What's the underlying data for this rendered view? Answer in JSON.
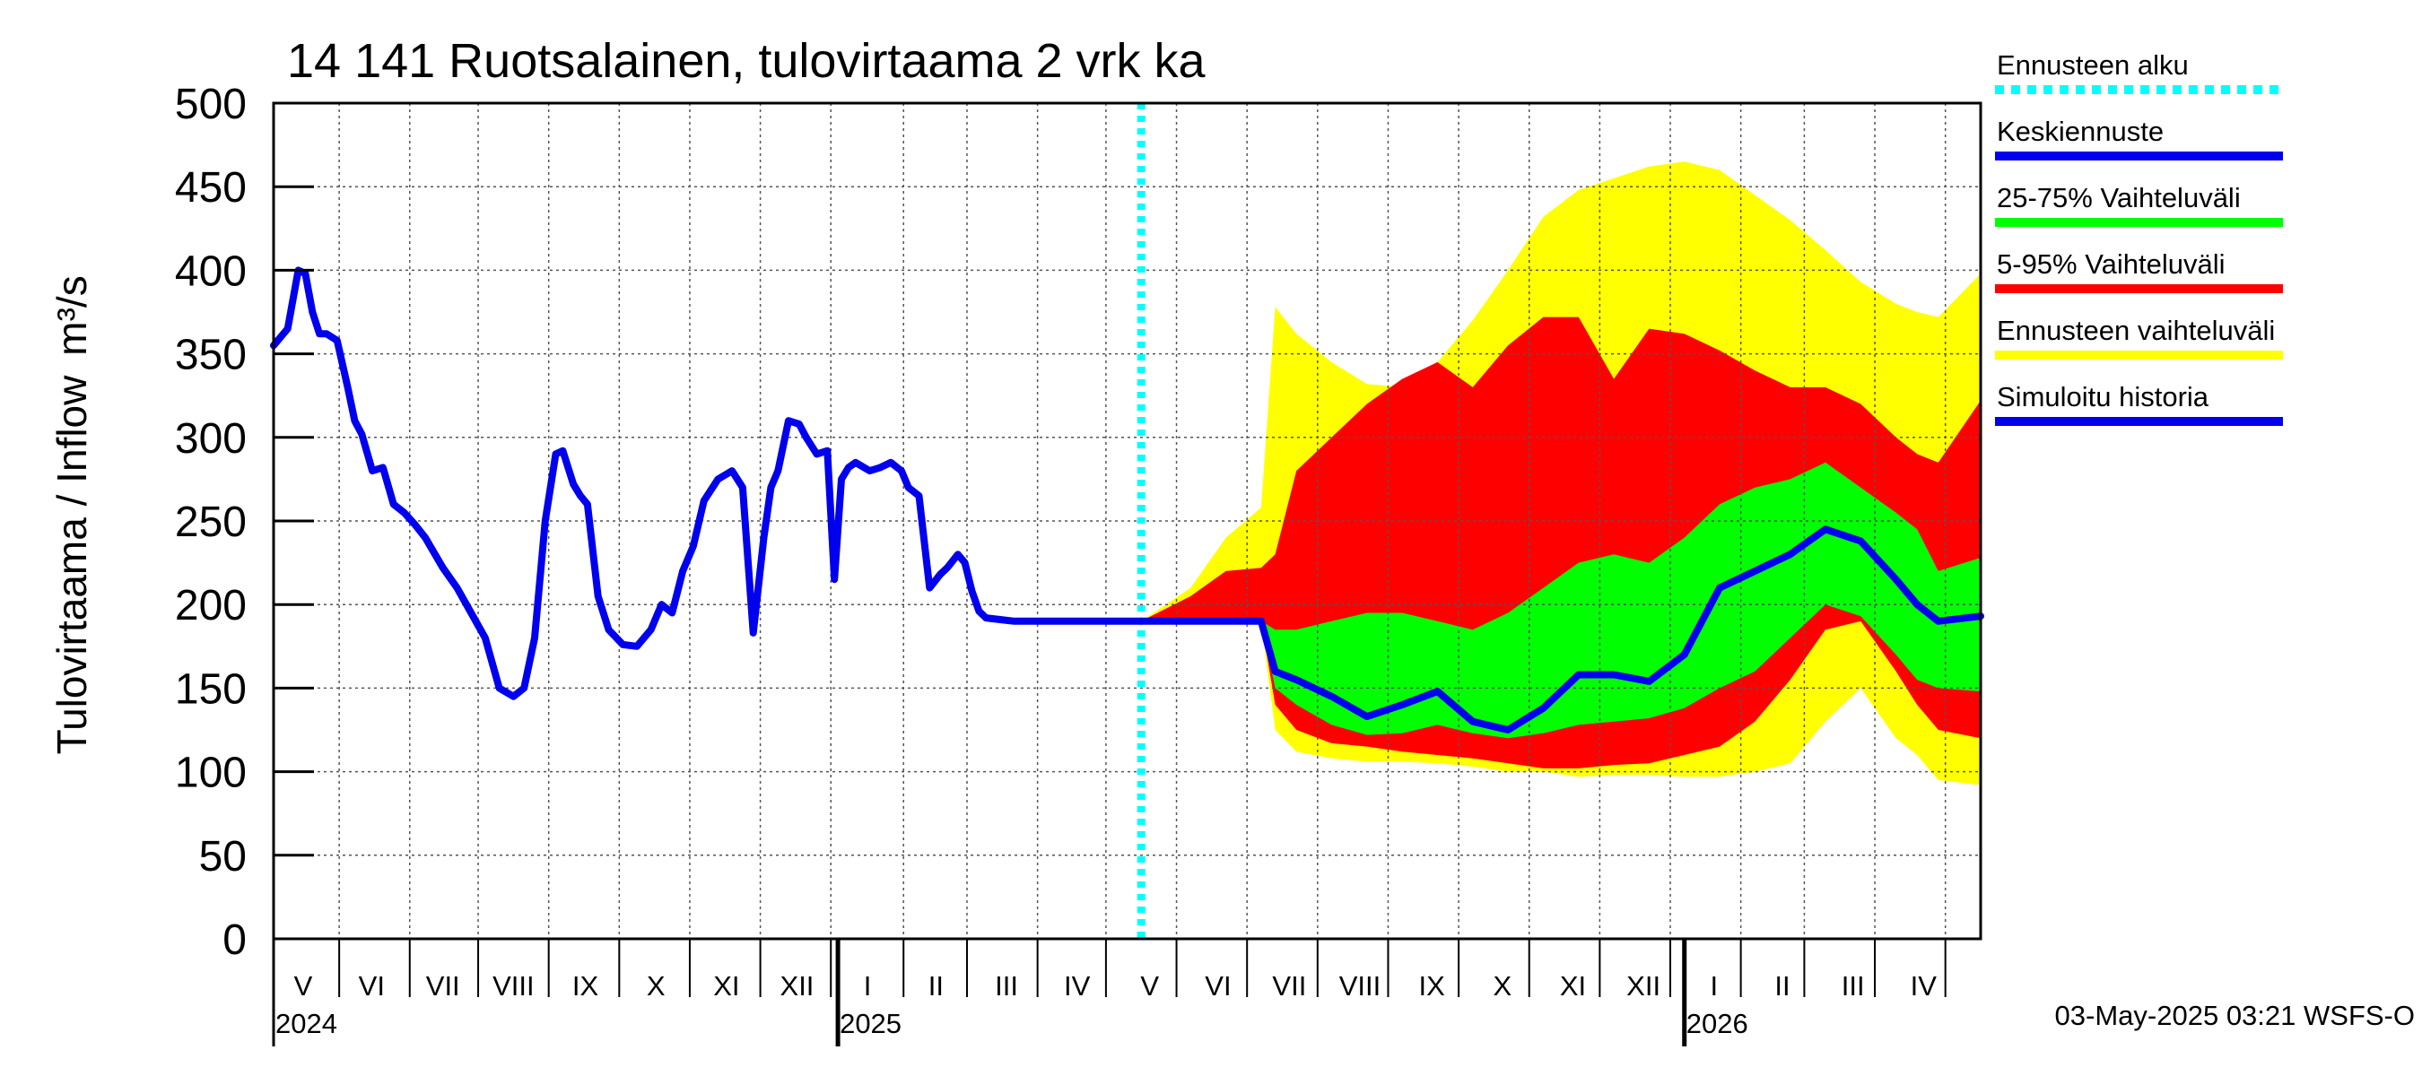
{
  "chart_data": {
    "type": "area",
    "title": "14 141 Ruotsalainen, tulovirtaama 2 vrk ka",
    "ylabel": "Tulovirtaama / Inflow",
    "yunit": "m³/s",
    "ylim": [
      0,
      500
    ],
    "yticks": [
      0,
      50,
      100,
      150,
      200,
      250,
      300,
      350,
      400,
      450,
      500
    ],
    "x_unit": "months since 2024-04-22",
    "xlim": [
      0,
      24.2
    ],
    "grid": true,
    "forecast_start": 12.3,
    "month_labels": [
      {
        "label": "V",
        "x": 0.42
      },
      {
        "label": "VI",
        "x": 1.39
      },
      {
        "label": "VII",
        "x": 2.4
      },
      {
        "label": "VIII",
        "x": 3.4
      },
      {
        "label": "IX",
        "x": 4.42
      },
      {
        "label": "X",
        "x": 5.42
      },
      {
        "label": "XI",
        "x": 6.42
      },
      {
        "label": "XII",
        "x": 7.42
      },
      {
        "label": "I",
        "x": 8.42
      },
      {
        "label": "II",
        "x": 9.39
      },
      {
        "label": "III",
        "x": 10.39
      },
      {
        "label": "IV",
        "x": 11.39
      },
      {
        "label": "V",
        "x": 12.42
      },
      {
        "label": "VI",
        "x": 13.39
      },
      {
        "label": "VII",
        "x": 14.4
      },
      {
        "label": "VIII",
        "x": 15.4
      },
      {
        "label": "IX",
        "x": 16.42
      },
      {
        "label": "X",
        "x": 17.42
      },
      {
        "label": "XI",
        "x": 18.42
      },
      {
        "label": "XII",
        "x": 19.42
      },
      {
        "label": "I",
        "x": 20.42
      },
      {
        "label": "II",
        "x": 21.39
      },
      {
        "label": "III",
        "x": 22.39
      },
      {
        "label": "IV",
        "x": 23.39
      }
    ],
    "month_boundaries": [
      0.93,
      1.93,
      2.9,
      3.9,
      4.9,
      5.9,
      6.9,
      7.9,
      8.93,
      9.83,
      10.83,
      11.8,
      12.8,
      13.8,
      14.8,
      15.8,
      16.8,
      17.8,
      18.8,
      19.8,
      20.8,
      21.7,
      22.7,
      23.7
    ],
    "year_boundaries": [
      8.0,
      20.0
    ],
    "year_labels": [
      {
        "label": "2024",
        "x": 0.0
      },
      {
        "label": "2025",
        "x": 8.0
      },
      {
        "label": "2026",
        "x": 20.0
      }
    ],
    "history": {
      "name": "Simuloitu historia",
      "x": [
        0.0,
        0.2,
        0.35,
        0.45,
        0.55,
        0.65,
        0.75,
        0.9,
        1.05,
        1.15,
        1.25,
        1.4,
        1.55,
        1.7,
        1.85,
        2.0,
        2.15,
        2.4,
        2.6,
        2.8,
        3.0,
        3.2,
        3.4,
        3.55,
        3.7,
        3.85,
        4.0,
        4.1,
        4.25,
        4.35,
        4.45,
        4.6,
        4.75,
        4.95,
        5.15,
        5.35,
        5.5,
        5.65,
        5.8,
        5.95,
        6.1,
        6.3,
        6.5,
        6.65,
        6.8,
        6.95,
        7.05,
        7.15,
        7.3,
        7.45,
        7.55,
        7.7,
        7.85,
        7.95,
        8.05,
        8.15,
        8.25,
        8.45,
        8.6,
        8.75,
        8.9,
        9.0,
        9.15,
        9.3,
        9.45,
        9.55,
        9.7,
        9.8,
        9.9,
        10.0,
        10.1,
        10.3,
        10.5,
        10.7,
        10.9,
        11.05,
        11.15,
        11.3,
        11.45,
        11.55,
        11.7,
        11.8,
        11.9,
        12.0,
        12.15,
        12.3
      ],
      "y": [
        355,
        365,
        400,
        398,
        375,
        362,
        362,
        358,
        330,
        310,
        302,
        280,
        282,
        260,
        255,
        248,
        240,
        222,
        210,
        195,
        180,
        150,
        145,
        150,
        180,
        250,
        290,
        292,
        272,
        265,
        260,
        205,
        185,
        176,
        175,
        185,
        200,
        195,
        220,
        235,
        262,
        275,
        280,
        270,
        183,
        240,
        270,
        280,
        310,
        308,
        300,
        290,
        292,
        215,
        275,
        282,
        285,
        280,
        282,
        285,
        280,
        270,
        265,
        210,
        218,
        222,
        230,
        225,
        208,
        196,
        192,
        191,
        190,
        190,
        190,
        190,
        190,
        190,
        190,
        190,
        190,
        190,
        190,
        190,
        190,
        190
      ]
    },
    "forecast": {
      "x": [
        12.3,
        13.0,
        13.5,
        14.0,
        14.2,
        14.5,
        15.0,
        15.5,
        16.0,
        16.5,
        17.0,
        17.5,
        18.0,
        18.5,
        19.0,
        19.5,
        20.0,
        20.5,
        21.0,
        21.5,
        22.0,
        22.5,
        23.0,
        23.3,
        23.6,
        24.2
      ],
      "median": [
        190,
        190,
        190,
        190,
        160,
        155,
        145,
        133,
        140,
        148,
        130,
        125,
        138,
        158,
        158,
        154,
        170,
        210,
        220,
        230,
        245,
        238,
        215,
        200,
        190,
        193
      ],
      "p25": [
        190,
        190,
        190,
        190,
        150,
        140,
        128,
        122,
        123,
        128,
        123,
        120,
        123,
        128,
        130,
        132,
        138,
        150,
        160,
        180,
        200,
        193,
        170,
        155,
        150,
        148
      ],
      "p75": [
        190,
        190,
        190,
        190,
        185,
        185,
        190,
        195,
        195,
        190,
        185,
        195,
        210,
        225,
        230,
        225,
        240,
        260,
        270,
        275,
        285,
        270,
        255,
        245,
        220,
        228
      ],
      "p5": [
        190,
        190,
        190,
        190,
        140,
        125,
        117,
        115,
        112,
        110,
        108,
        105,
        102,
        102,
        104,
        105,
        110,
        115,
        130,
        155,
        185,
        190,
        160,
        140,
        125,
        120
      ],
      "p95": [
        190,
        205,
        220,
        222,
        230,
        280,
        300,
        320,
        335,
        345,
        330,
        355,
        372,
        372,
        335,
        365,
        362,
        352,
        340,
        330,
        330,
        320,
        300,
        290,
        285,
        322
      ],
      "min": [
        190,
        190,
        190,
        190,
        125,
        112,
        108,
        106,
        106,
        105,
        103,
        100,
        100,
        97,
        98,
        98,
        97,
        97,
        100,
        105,
        130,
        150,
        120,
        110,
        95,
        92
      ],
      "max": [
        190,
        210,
        240,
        258,
        378,
        362,
        345,
        332,
        330,
        345,
        370,
        400,
        432,
        448,
        455,
        462,
        465,
        460,
        445,
        430,
        412,
        393,
        380,
        375,
        372,
        398
      ]
    },
    "colors": {
      "median": "#0000ee",
      "history": "#0000ee",
      "p25_75": "#00ff00",
      "p5_95": "#ff0000",
      "range": "#ffff00",
      "forecast_start": "#00ffff",
      "grid": "#555555",
      "axis": "#000000"
    },
    "legend": [
      {
        "label": "Ennusteen alku",
        "color": "#00ffff",
        "style": "dotted"
      },
      {
        "label": "Keskiennuste",
        "color": "#0000ee",
        "style": "solid"
      },
      {
        "label": "25-75% Vaihteluväli",
        "color": "#00ff00",
        "style": "solid"
      },
      {
        "label": "5-95% Vaihteluväli",
        "color": "#ff0000",
        "style": "solid"
      },
      {
        "label": "Ennusteen vaihteluväli",
        "color": "#ffff00",
        "style": "solid"
      },
      {
        "label": "Simuloitu historia",
        "color": "#0000ee",
        "style": "solid"
      }
    ],
    "footer": "03-May-2025 03:21 WSFS-O"
  }
}
